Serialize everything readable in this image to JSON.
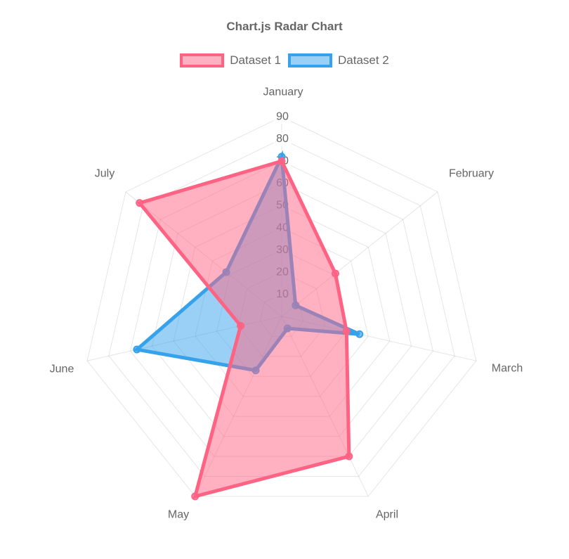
{
  "title": "Chart.js Radar Chart",
  "legend": {
    "items": [
      {
        "label": "Dataset 1",
        "border": "#FF6384",
        "fill": "rgba(255,99,132,0.5)"
      },
      {
        "label": "Dataset 2",
        "border": "#36A2EB",
        "fill": "rgba(54,162,235,0.5)"
      }
    ]
  },
  "chart_data": {
    "type": "radar",
    "title": "Chart.js Radar Chart",
    "categories": [
      "January",
      "February",
      "March",
      "April",
      "May",
      "June",
      "July"
    ],
    "series": [
      {
        "name": "Dataset 1",
        "values": [
          70,
          31,
          30,
          70,
          90,
          19,
          82
        ],
        "color": "#FF6384",
        "fill": "rgba(255,99,132,0.5)"
      },
      {
        "name": "Dataset 2",
        "values": [
          72,
          8,
          36,
          6,
          27,
          67,
          32
        ],
        "color": "#36A2EB",
        "fill": "rgba(54,162,235,0.5)"
      }
    ],
    "scale": {
      "min": 0,
      "max": 90,
      "tick_step": 10,
      "ticks": [
        10,
        20,
        30,
        40,
        50,
        60,
        70,
        80,
        90
      ]
    },
    "grid": true,
    "grid_color": "rgba(0,0,0,0.1)",
    "tick_color": "#666",
    "point_label_color": "#666",
    "tick_backdrop": "rgba(255,255,255,0.75)",
    "legend_position": "top",
    "draw_order_note": "Dataset 2 drawn beneath Dataset 1"
  }
}
